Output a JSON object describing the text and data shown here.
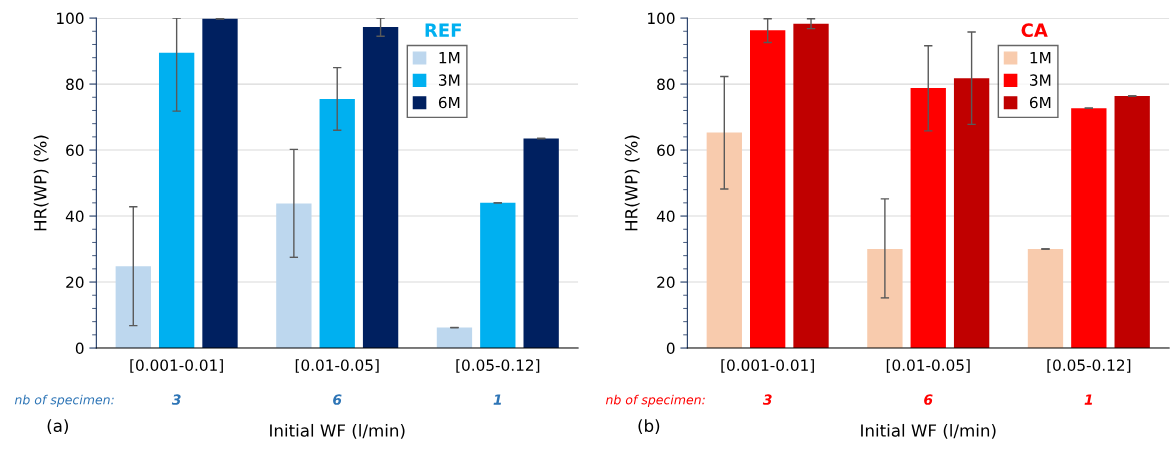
{
  "chart_data": [
    {
      "type": "bar",
      "title": "REF",
      "xlabel": "Initial WF (l/min)",
      "ylabel": "HR(WP) (%)",
      "categories": [
        "[0.001-0.01]",
        "[0.01-0.05]",
        "[0.05-0.12]"
      ],
      "series": [
        {
          "name": "1M",
          "color": "#bdd7ee",
          "values": [
            24.8,
            43.8,
            6.2
          ],
          "errors": [
            [
              6.8,
              42.8
            ],
            [
              27.5,
              60.2
            ],
            0
          ]
        },
        {
          "name": "3M",
          "color": "#00b0f0",
          "values": [
            89.5,
            75.5,
            44.0
          ],
          "errors": [
            [
              71.8,
              100
            ],
            [
              66.0,
              85.0
            ],
            0
          ]
        },
        {
          "name": "6M",
          "color": "#002060",
          "values": [
            99.8,
            97.3,
            63.5
          ],
          "errors": [
            0,
            [
              94.5,
              100
            ],
            0
          ]
        }
      ],
      "ylim": [
        0,
        100
      ],
      "yticks": [
        0,
        20,
        40,
        60,
        80,
        100
      ],
      "grid": "y",
      "legend": "top right",
      "annotations": [
        "nb of specimen:",
        "3",
        "6",
        "1",
        "(a)"
      ]
    },
    {
      "type": "bar",
      "title": "CA",
      "xlabel": "Initial WF (l/min)",
      "ylabel": "HR(WP) (%)",
      "categories": [
        "[0.001-0.01]",
        "[0.01-0.05]",
        "[0.05-0.12]"
      ],
      "series": [
        {
          "name": "1M",
          "color": "#f8cbad",
          "values": [
            65.3,
            30.0,
            30.0
          ],
          "errors": [
            [
              48.2,
              82.3
            ],
            [
              15.2,
              45.2
            ],
            0
          ]
        },
        {
          "name": "3M",
          "color": "#ff0000",
          "values": [
            96.3,
            78.8,
            72.7
          ],
          "errors": [
            [
              92.6,
              99.8
            ],
            [
              65.8,
              91.6
            ],
            0
          ]
        },
        {
          "name": "6M",
          "color": "#c00000",
          "values": [
            98.3,
            81.8,
            76.4
          ],
          "errors": [
            [
              96.8,
              99.8
            ],
            [
              67.8,
              95.8
            ],
            0
          ]
        }
      ],
      "ylim": [
        0,
        100
      ],
      "yticks": [
        0,
        20,
        40,
        60,
        80,
        100
      ],
      "grid": "y",
      "legend": "top right",
      "annotations": [
        "nb of specimen:",
        "3",
        "6",
        "1",
        "(b)"
      ]
    }
  ]
}
